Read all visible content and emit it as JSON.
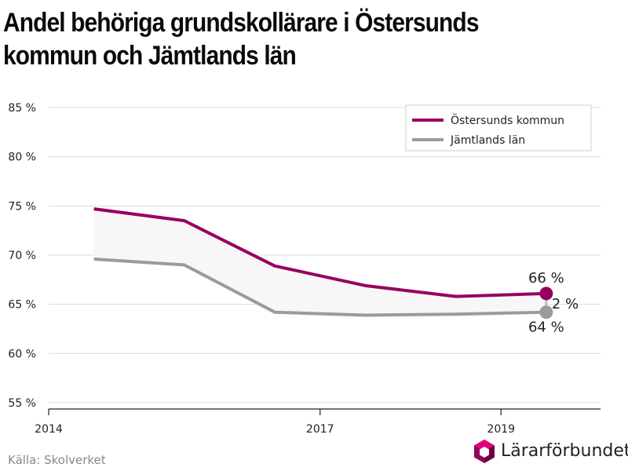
{
  "title": "Andel behöriga grundskollärare i Östersunds kommun och Jämtlands län",
  "source": "Källa: Skolverket",
  "logo": {
    "text": "Lärarförbundet",
    "icon": "lararforbundet-logo-icon"
  },
  "chart_data": {
    "type": "line",
    "x": [
      2014.5,
      2015.5,
      2016.5,
      2017.5,
      2018.5,
      2019.5
    ],
    "series": [
      {
        "name": "Östersunds kommun",
        "color": "#96005f",
        "values": [
          74.7,
          73.5,
          68.9,
          66.9,
          65.8,
          66.1
        ]
      },
      {
        "name": "Jämtlands län",
        "color": "#9b9b9b",
        "values": [
          69.6,
          69.0,
          64.2,
          63.9,
          64.0,
          64.2
        ]
      }
    ],
    "ylim": [
      55,
      85
    ],
    "yticks": [
      "55 %",
      "60 %",
      "65 %",
      "70 %",
      "75 %",
      "80 %",
      "85 %"
    ],
    "ytick_values": [
      55,
      60,
      65,
      70,
      75,
      80,
      85
    ],
    "xlim": [
      2014,
      2020.1
    ],
    "xticks": [
      "2014",
      "2017",
      "2019"
    ],
    "xtick_values": [
      2014,
      2017,
      2019
    ],
    "grid": true,
    "legend": "top-right",
    "annotations": {
      "top_label": "66 %",
      "bottom_label": "64 %",
      "diff_label": "2 %"
    },
    "shaded_gap_color": "#f7f7f7"
  }
}
